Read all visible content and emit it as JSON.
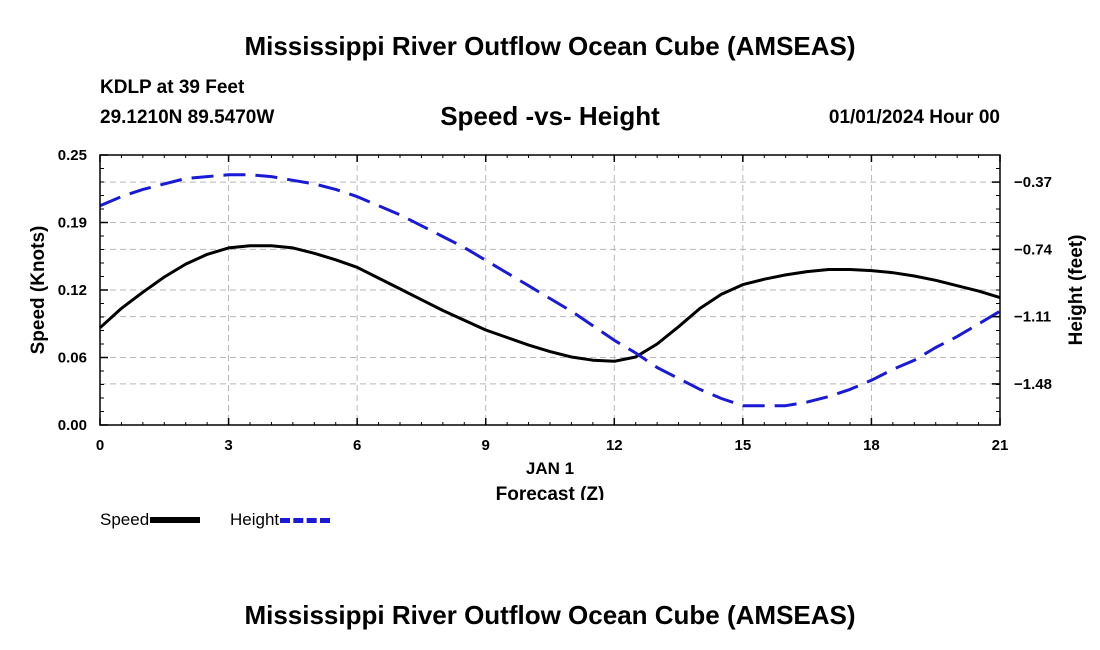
{
  "page": {
    "title": "Mississippi River Outflow Ocean Cube (AMSEAS)",
    "station": "KDLP at 39 Feet",
    "coordinates": "29.1210N  89.5470W",
    "datetime": "01/01/2024 Hour 00",
    "footer_title": "Mississippi River Outflow Ocean Cube (AMSEAS)"
  },
  "chart_data": {
    "type": "line",
    "title": "Speed -vs- Height",
    "xlabel": "Forecast (Z)",
    "xdate_label": "JAN 1",
    "ylabel_left": "Speed (Knots)",
    "ylabel_right": "Height (feet)",
    "x": [
      0,
      0.5,
      1,
      1.5,
      2,
      2.5,
      3,
      3.5,
      4,
      4.5,
      5,
      5.5,
      6,
      6.5,
      7,
      7.5,
      8,
      8.5,
      9,
      9.5,
      10,
      10.5,
      11,
      11.5,
      12,
      12.5,
      13,
      13.5,
      14,
      14.5,
      15,
      15.5,
      16,
      16.5,
      17,
      17.5,
      18,
      18.5,
      19,
      19.5,
      20,
      20.5,
      21
    ],
    "xlim": [
      0,
      21
    ],
    "xticks": [
      0,
      3,
      6,
      9,
      12,
      15,
      18,
      21
    ],
    "ylim_left": [
      0,
      0.25
    ],
    "yticks_left": [
      "0.00",
      "0.06",
      "0.12",
      "0.19",
      "0.25"
    ],
    "ytick_values_left": [
      0,
      0.0625,
      0.125,
      0.1875,
      0.25
    ],
    "ylim_right": [
      -1.706,
      -0.221
    ],
    "yticks_right": [
      "-0.37",
      "-0.74",
      "-1.11",
      "-1.48"
    ],
    "ytick_values_right": [
      -0.37,
      -0.74,
      -1.11,
      -1.48
    ],
    "grid": true,
    "legend_position": "bottom-left",
    "series": [
      {
        "name": "Speed",
        "axis": "left",
        "color": "#000000",
        "style": "solid",
        "values": [
          0.09,
          0.108,
          0.123,
          0.137,
          0.149,
          0.158,
          0.164,
          0.166,
          0.166,
          0.164,
          0.159,
          0.153,
          0.146,
          0.136,
          0.126,
          0.116,
          0.106,
          0.097,
          0.088,
          0.081,
          0.074,
          0.068,
          0.063,
          0.06,
          0.059,
          0.063,
          0.075,
          0.091,
          0.108,
          0.121,
          0.13,
          0.135,
          0.139,
          0.142,
          0.144,
          0.144,
          0.143,
          0.141,
          0.138,
          0.134,
          0.129,
          0.124,
          0.118
        ]
      },
      {
        "name": "Height",
        "axis": "right",
        "color": "#1a1ad6",
        "style": "dashed",
        "values": [
          -0.5,
          -0.45,
          -0.41,
          -0.38,
          -0.35,
          -0.34,
          -0.33,
          -0.33,
          -0.34,
          -0.36,
          -0.38,
          -0.41,
          -0.45,
          -0.5,
          -0.55,
          -0.61,
          -0.67,
          -0.73,
          -0.8,
          -0.87,
          -0.94,
          -1.01,
          -1.08,
          -1.16,
          -1.24,
          -1.31,
          -1.39,
          -1.45,
          -1.51,
          -1.56,
          -1.6,
          -1.6,
          -1.6,
          -1.58,
          -1.55,
          -1.51,
          -1.46,
          -1.4,
          -1.35,
          -1.28,
          -1.22,
          -1.15,
          -1.08
        ]
      }
    ]
  },
  "legend": {
    "speed_label": "Speed",
    "height_label": "Height"
  }
}
